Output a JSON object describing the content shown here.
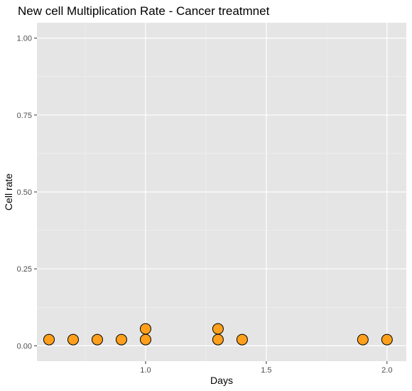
{
  "chart_data": {
    "type": "scatter",
    "title": "New cell Multiplication Rate - Cancer treatmnet",
    "xlabel": "Days",
    "ylabel": "Cell rate",
    "xlim": [
      0.55,
      2.08
    ],
    "ylim": [
      -0.05,
      1.05
    ],
    "x_ticks": [
      1.0,
      1.5,
      2.0
    ],
    "x_tick_labels": [
      "1.0",
      "1.5",
      "2.0"
    ],
    "x_minor_ticks": [
      0.75,
      1.25,
      1.75
    ],
    "y_ticks": [
      0.0,
      0.25,
      0.5,
      0.75,
      1.0
    ],
    "y_tick_labels": [
      "0.00",
      "0.25",
      "0.50",
      "0.75",
      "1.00"
    ],
    "y_minor_ticks": [
      0.125,
      0.375,
      0.625,
      0.875
    ],
    "grid": true,
    "marker_fill": "#ff9f1c",
    "marker_stroke": "#000000",
    "panel_background": "#e5e5e5",
    "points": [
      {
        "x": 0.6,
        "y": 0.02
      },
      {
        "x": 0.7,
        "y": 0.02
      },
      {
        "x": 0.8,
        "y": 0.02
      },
      {
        "x": 0.9,
        "y": 0.02
      },
      {
        "x": 1.0,
        "y": 0.02
      },
      {
        "x": 1.0,
        "y": 0.055
      },
      {
        "x": 1.3,
        "y": 0.02
      },
      {
        "x": 1.3,
        "y": 0.055
      },
      {
        "x": 1.4,
        "y": 0.02
      },
      {
        "x": 1.9,
        "y": 0.02
      },
      {
        "x": 2.0,
        "y": 0.02
      }
    ]
  }
}
